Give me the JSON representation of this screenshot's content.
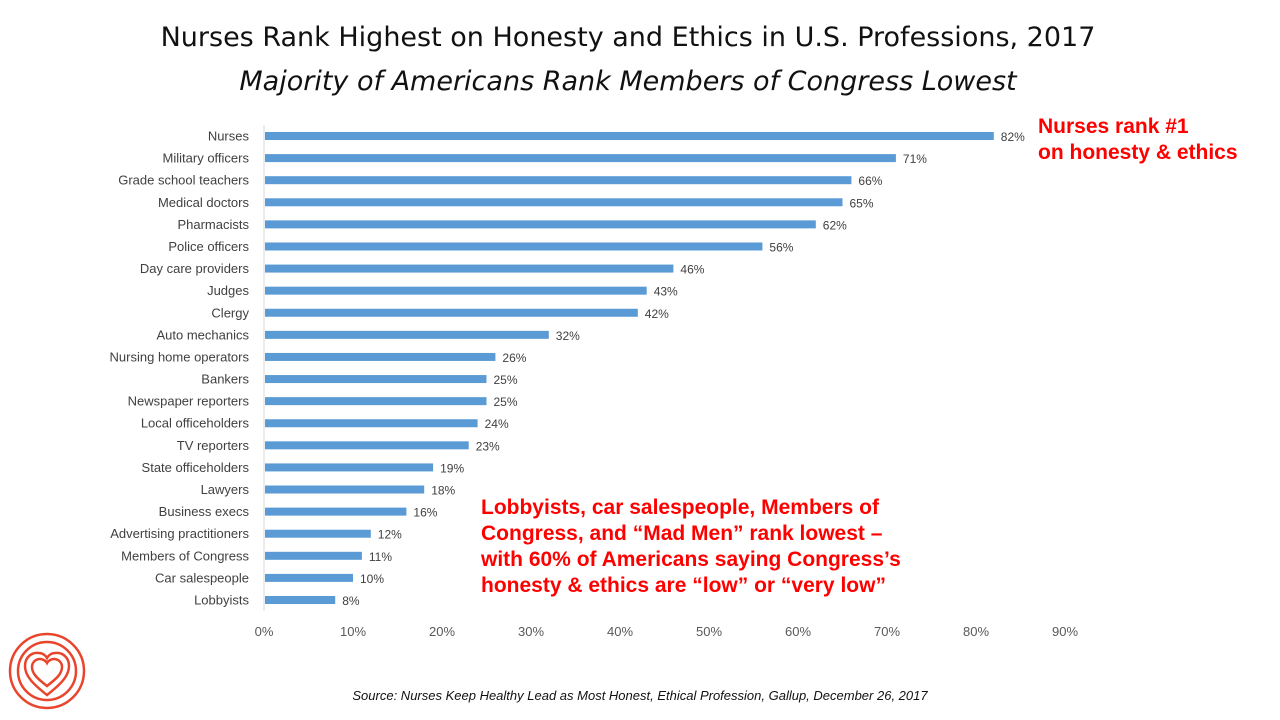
{
  "header": {
    "title": "Nurses Rank Highest on Honesty and Ethics in U.S. Professions, 2017",
    "subtitle": "Majority of Americans Rank Members of Congress Lowest"
  },
  "annotations": {
    "top": [
      "Nurses rank #1",
      "on honesty & ethics"
    ],
    "bottom": [
      "Lobbyists, car salespeople, Members of",
      "Congress, and “Mad Men” rank lowest –",
      "with 60% of Americans saying Congress’s",
      "honesty & ethics are “low” or “very low”"
    ]
  },
  "source": "Source: Nurses Keep Healthy Lead as Most Honest, Ethical Profession, Gallup, December 26, 2017",
  "colors": {
    "bar": "#5b9bd5",
    "annotation": "#ff0000",
    "logo": "#e8452c"
  },
  "logo_icon": "concentric-heart-logo",
  "chart_data": {
    "type": "bar",
    "orientation": "horizontal",
    "categories": [
      "Nurses",
      "Military officers",
      "Grade school teachers",
      "Medical doctors",
      "Pharmacists",
      "Police officers",
      "Day care providers",
      "Judges",
      "Clergy",
      "Auto mechanics",
      "Nursing home operators",
      "Bankers",
      "Newspaper reporters",
      "Local officeholders",
      "TV reporters",
      "State officeholders",
      "Lawyers",
      "Business execs",
      "Advertising practitioners",
      "Members of Congress",
      "Car salespeople",
      "Lobbyists"
    ],
    "values": [
      82,
      71,
      66,
      65,
      62,
      56,
      46,
      43,
      42,
      32,
      26,
      25,
      25,
      24,
      23,
      19,
      18,
      16,
      12,
      11,
      10,
      8
    ],
    "unit": "%",
    "xlim": [
      0,
      90
    ],
    "xticks": [
      "0%",
      "10%",
      "20%",
      "30%",
      "40%",
      "50%",
      "60%",
      "70%",
      "80%",
      "90%"
    ],
    "grid": false
  }
}
